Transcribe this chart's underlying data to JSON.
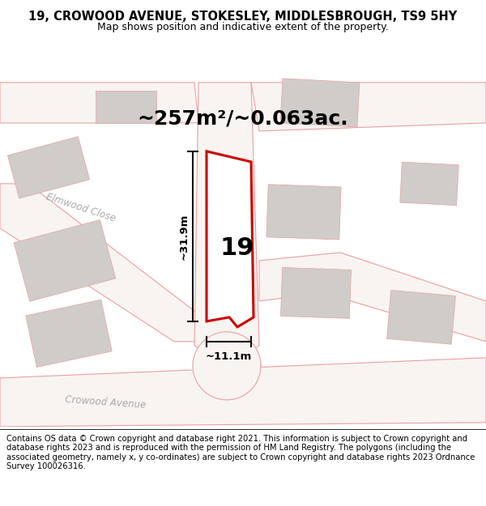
{
  "title": "19, CROWOOD AVENUE, STOKESLEY, MIDDLESBROUGH, TS9 5HY",
  "subtitle": "Map shows position and indicative extent of the property.",
  "footer": "Contains OS data © Crown copyright and database right 2021. This information is subject to Crown copyright and database rights 2023 and is reproduced with the permission of HM Land Registry. The polygons (including the associated geometry, namely x, y co-ordinates) are subject to Crown copyright and database rights 2023 Ordnance Survey 100026316.",
  "area_text": "~257m²/~0.063ac.",
  "width_text": "~11.1m",
  "height_text": "~31.9m",
  "number_text": "19",
  "bg_color": "#ede8e4",
  "road_fill": "#f8f4f1",
  "building_fill": "#d0ccca",
  "road_stroke": "#e8a0a0",
  "plot_stroke": "#cc0000",
  "dim_color": "#111111",
  "street_label_color": "#aaaaaa",
  "title_fontsize": 10.5,
  "subtitle_fontsize": 9,
  "footer_fontsize": 7.2,
  "area_fontsize": 18,
  "number_fontsize": 22
}
